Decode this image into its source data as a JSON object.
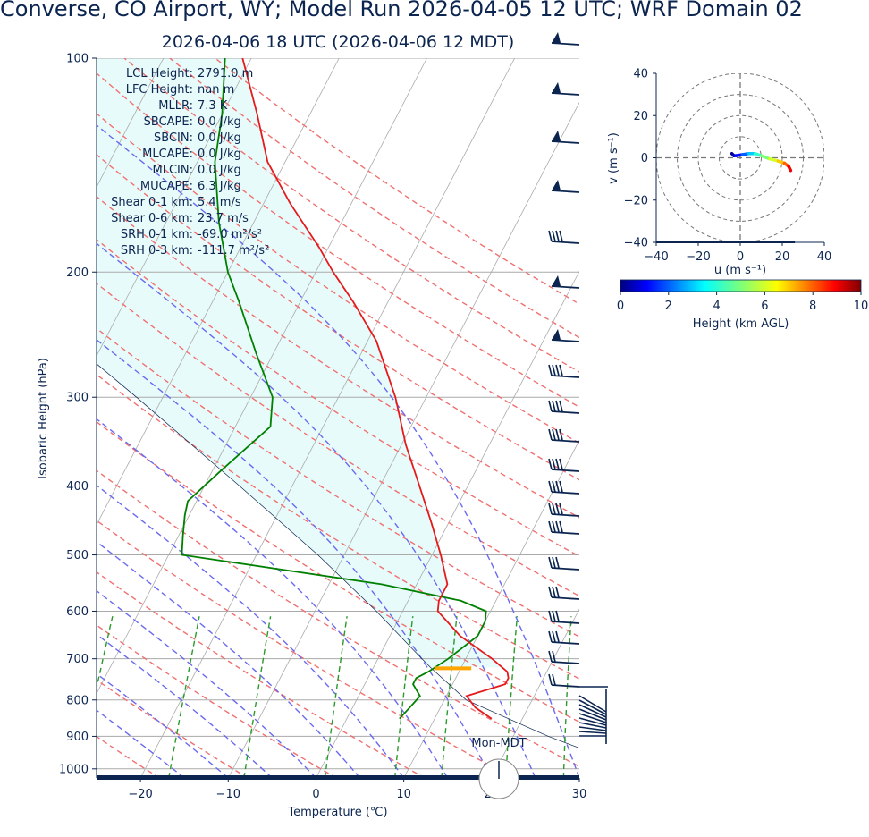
{
  "header": {
    "title": "Converse, CO Airport, WY; Model Run 2026-04-05 12 UTC; WRF Domain 02",
    "subtitle": "2026-04-06 18 UTC  (2026-04-06 12 MDT)"
  },
  "stats": [
    {
      "label": "LCL Height:",
      "value": "2791.0 m"
    },
    {
      "label": "LFC Height:",
      "value": "nan m"
    },
    {
      "label": "MLLR:",
      "value": "7.3 K"
    },
    {
      "label": "SBCAPE:",
      "value": "0.0 J/kg"
    },
    {
      "label": "SBCIN:",
      "value": "0.0 J/kg"
    },
    {
      "label": "MLCAPE:",
      "value": "0.0 J/kg"
    },
    {
      "label": "MLCIN:",
      "value": "0.0 J/kg"
    },
    {
      "label": "MUCAPE:",
      "value": "6.3 J/kg"
    },
    {
      "label": "Shear 0-1 km:",
      "value": "5.4 m/s"
    },
    {
      "label": "Shear 0-6 km:",
      "value": "23.7 m/s"
    },
    {
      "label": "SRH 0-1 km:",
      "value": "-69.0 m²/s²"
    },
    {
      "label": "SRH 0-3 km:",
      "value": "-111.7 m²/s²"
    }
  ],
  "clock": {
    "label": "Mon-MDT"
  },
  "chart_data": [
    {
      "type": "line",
      "name": "skew-t",
      "xlabel": "Temperature (℃)",
      "ylabel": "Isobaric Height (hPa)",
      "xlim": [
        -25,
        30
      ],
      "ylim": [
        1030,
        100
      ],
      "y_scale": "log",
      "x_ticks": [
        -20,
        -10,
        0,
        10,
        20,
        30
      ],
      "y_ticks": [
        100,
        200,
        300,
        400,
        500,
        600,
        700,
        800,
        900,
        1000
      ],
      "colors": {
        "temperature": "#e41a1c",
        "dewpoint": "#008000",
        "parcel": "#0b2550",
        "dry_adiabat": "#f07070",
        "moist_adiabat": "#6a6af0",
        "mixing_ratio": "#2a9a2a",
        "isotherm": "#aaaaaa",
        "cape_shade": "#e8fbfb"
      },
      "temperature": {
        "p": [
          850,
          820,
          790,
          760,
          745,
          730,
          700,
          650,
          600,
          580,
          550,
          500,
          450,
          400,
          350,
          300,
          250,
          220,
          200,
          185,
          160,
          140,
          120,
          100
        ],
        "t": [
          16.5,
          14.0,
          12.3,
          16.0,
          16.0,
          15.5,
          13.0,
          8.0,
          4.0,
          3.5,
          3.5,
          1.0,
          -2.0,
          -5.5,
          -9.5,
          -13.5,
          -19.0,
          -24.0,
          -28.0,
          -31.0,
          -37.0,
          -42.0,
          -46.0,
          -51.0
        ]
      },
      "dewpoint": {
        "p": [
          850,
          820,
          790,
          760,
          745,
          730,
          700,
          650,
          620,
          600,
          580,
          550,
          500,
          470,
          440,
          420,
          380,
          330,
          300,
          260,
          220,
          200,
          170,
          140,
          120,
          100
        ],
        "t": [
          6.0,
          6.5,
          7.0,
          5.5,
          5.5,
          6.5,
          8.0,
          10.0,
          10.0,
          9.5,
          6.0,
          -4.0,
          -28.5,
          -29.5,
          -30.5,
          -31.0,
          -29.0,
          -26.0,
          -27.5,
          -32.0,
          -37.0,
          -40.0,
          -44.0,
          -48.0,
          -50.0,
          -53.0
        ]
      },
      "parcel": {
        "p": [
          1030,
          900,
          800,
          720,
          680,
          600,
          500,
          400,
          300,
          250,
          200,
          170
        ],
        "t": [
          39.0,
          24.0,
          12.5,
          6.5,
          3.5,
          -3.0,
          -13.0,
          -26.0,
          -43.0,
          -54.0,
          -67.0,
          -78.0
        ]
      },
      "lcl_marker": {
        "p": 722,
        "t_range": [
          7.0,
          11.2
        ],
        "color": "#ffa500"
      }
    },
    {
      "type": "line",
      "name": "hodograph",
      "xlabel": "u (m s⁻¹)",
      "ylabel": "v (m s⁻¹)",
      "xlim": [
        -40,
        40
      ],
      "ylim": [
        -40,
        40
      ],
      "x_ticks": [
        -40,
        -20,
        0,
        20,
        40
      ],
      "y_ticks": [
        -40,
        -20,
        0,
        20,
        40
      ],
      "rings": [
        10,
        20,
        30,
        40
      ],
      "u": [
        -4,
        -3,
        -2,
        1,
        4,
        7,
        10,
        14,
        18,
        21,
        23,
        24
      ],
      "v": [
        2,
        1,
        1,
        1.5,
        2,
        2,
        1,
        -0.5,
        -1.5,
        -2.5,
        -4,
        -6
      ],
      "height_km": [
        0,
        0.4,
        0.9,
        1.5,
        2.5,
        3.5,
        4.5,
        5.5,
        6.5,
        7.5,
        8.5,
        9.5
      ],
      "colorbar": {
        "label": "Height (km AGL)",
        "range": [
          0,
          10
        ],
        "ticks": [
          0,
          2,
          4,
          6,
          8,
          10
        ]
      }
    }
  ]
}
